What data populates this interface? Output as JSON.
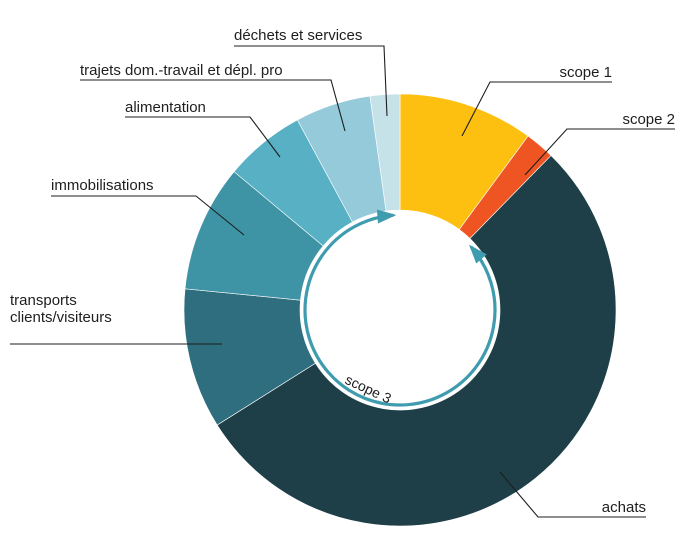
{
  "chart_data": {
    "type": "pie",
    "variant": "donut",
    "title": "",
    "slices": [
      {
        "label": "scope 1",
        "value": 10.0,
        "color": "#FDC010"
      },
      {
        "label": "scope 2",
        "value": 2.2,
        "color": "#EE5522"
      },
      {
        "label": "achats",
        "value": 53.2,
        "color": "#1E3F47"
      },
      {
        "label": "transports\nclients/visiteurs",
        "value": 10.4,
        "color": "#2E6E7E"
      },
      {
        "label": "immobilisations",
        "value": 9.4,
        "color": "#3E93A5"
      },
      {
        "label": "alimentation",
        "value": 6.0,
        "color": "#57B0C4"
      },
      {
        "label": "trajets dom.-travail et dépl. pro",
        "value": 5.6,
        "color": "#94CAD9"
      },
      {
        "label": "déchets et services",
        "value": 2.2,
        "color": "#C6E2E9"
      }
    ],
    "group_annotation": {
      "label": "scope 3",
      "color": "#3F9BAE"
    }
  }
}
